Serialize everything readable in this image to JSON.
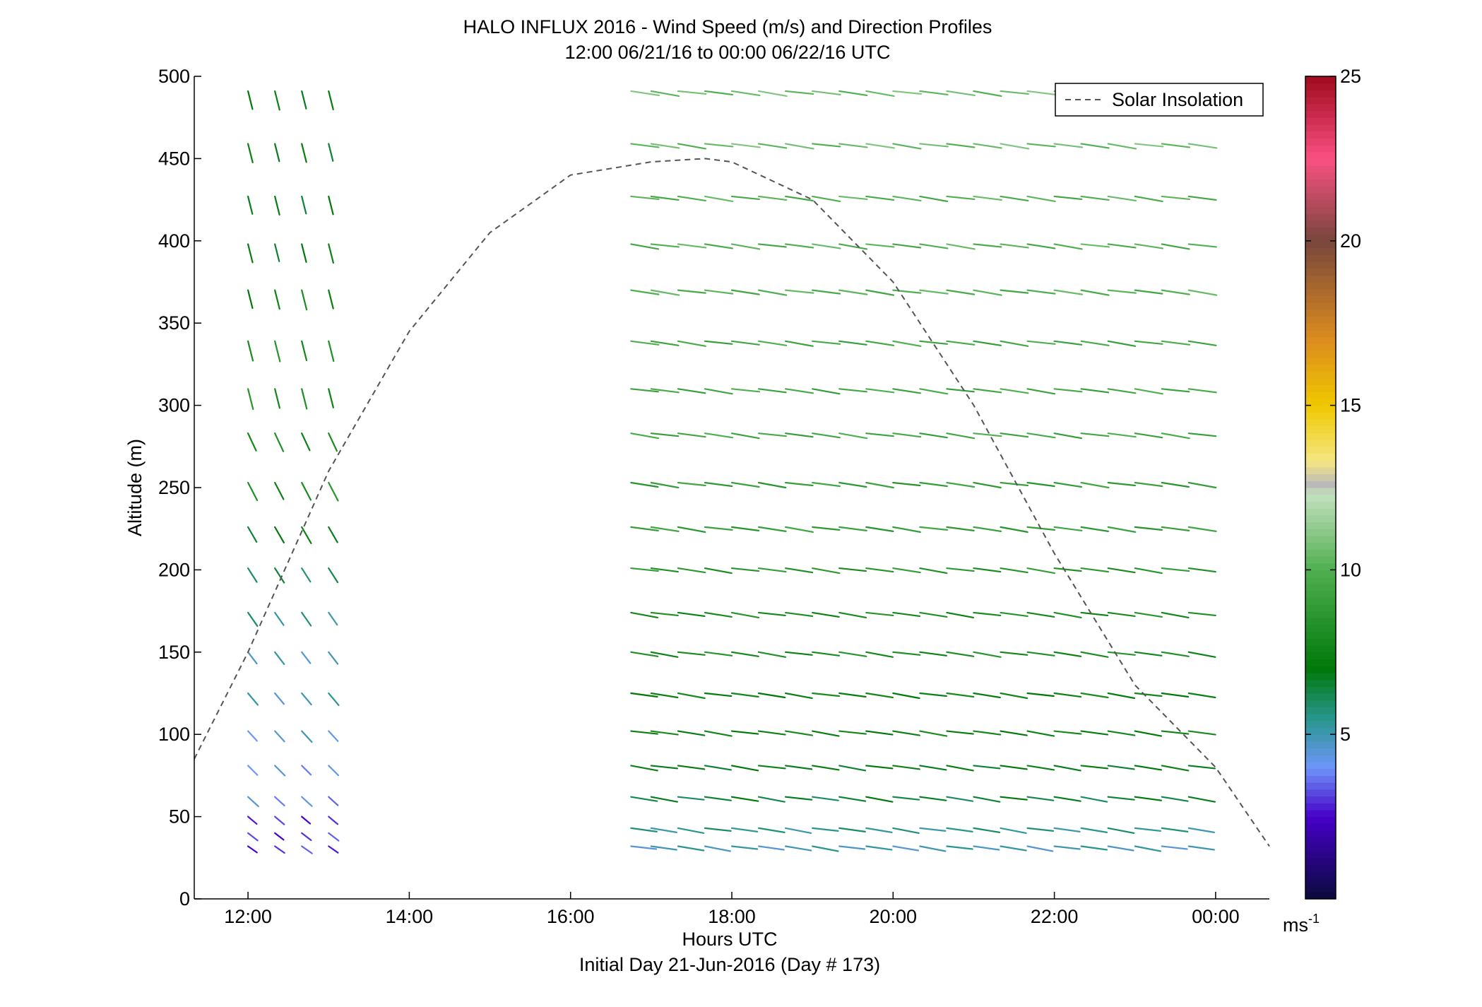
{
  "chart_data": {
    "type": "quiver",
    "title": "HALO INFLUX 2016 - Wind Speed (m/s) and Direction Profiles",
    "subtitle": "12:00 06/21/16 to 00:00 06/22/16  UTC",
    "xlabel": "Hours UTC",
    "xlabel2": "Initial Day 21-Jun-2016 (Day # 173)",
    "ylabel": "Altitude (m)",
    "xlim": [
      "11:20",
      "00:40"
    ],
    "ylim": [
      0,
      500
    ],
    "x_ticks": [
      "12:00",
      "14:00",
      "16:00",
      "18:00",
      "20:00",
      "22:00",
      "00:00"
    ],
    "y_ticks": [
      0,
      50,
      100,
      150,
      200,
      250,
      300,
      350,
      400,
      450,
      500
    ],
    "grid": false,
    "legend": {
      "position": "top-right",
      "entries": [
        "Solar Insolation"
      ]
    },
    "colorbar": {
      "min": 0,
      "max": 25,
      "ticks": [
        5,
        10,
        15,
        20,
        25
      ],
      "unit": "ms-1"
    },
    "colors": {
      "solar_line": "#555555",
      "axis": "#000000"
    },
    "solar_insolation": {
      "x": [
        "11:20",
        "12:00",
        "13:00",
        "14:00",
        "15:00",
        "16:00",
        "17:00",
        "17:40",
        "18:00",
        "19:00",
        "20:00",
        "21:00",
        "22:00",
        "23:00",
        "00:00",
        "00:40"
      ],
      "y": [
        85,
        150,
        260,
        345,
        405,
        440,
        448,
        450,
        448,
        425,
        375,
        300,
        210,
        130,
        80,
        32
      ]
    },
    "altitude_levels": [
      32,
      43,
      62,
      81,
      102,
      125,
      150,
      174,
      201,
      226,
      253,
      283,
      310,
      339,
      370,
      398,
      427,
      459,
      491
    ],
    "profile_groups": [
      {
        "times": [
          "12:00",
          "12:20",
          "12:40",
          "13:00"
        ],
        "altitudes": [
          32,
          40,
          50,
          62,
          81,
          102,
          125,
          150,
          174,
          201,
          226,
          253,
          283,
          310,
          339,
          370,
          398,
          427,
          459,
          491
        ],
        "speeds": [
          3,
          3,
          3,
          4,
          4,
          4.5,
          5,
          5,
          5.5,
          6,
          7,
          8,
          8,
          8,
          8,
          7.5,
          7,
          7,
          7,
          7
        ],
        "direction": "north-west"
      },
      {
        "times": [
          "16:45",
          "17:00",
          "17:20",
          "17:40",
          "18:00",
          "18:20",
          "18:40",
          "19:00",
          "19:20",
          "19:40",
          "20:00",
          "20:20",
          "20:40",
          "21:00",
          "21:20",
          "21:40",
          "22:00",
          "22:20",
          "22:40",
          "23:00",
          "23:20",
          "23:40"
        ],
        "altitudes": [
          32,
          43,
          62,
          81,
          102,
          125,
          150,
          174,
          201,
          226,
          253,
          283,
          310,
          339,
          370,
          398,
          427,
          459,
          491
        ],
        "speeds": [
          5,
          5.5,
          6.5,
          7,
          7.5,
          7.5,
          8,
          8,
          8.5,
          9,
          9,
          9.5,
          9.5,
          9.5,
          10,
          10,
          10,
          10.5,
          10.5
        ],
        "direction": "west"
      }
    ]
  }
}
